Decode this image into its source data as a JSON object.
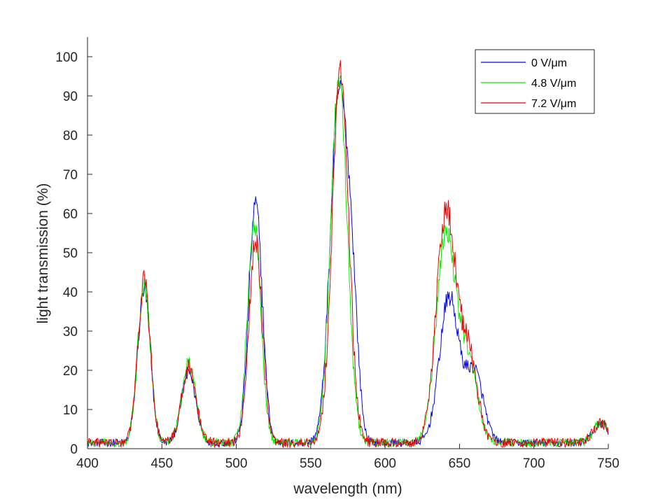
{
  "chart_data": {
    "type": "line",
    "title": "",
    "xlabel": "wavelength (nm)",
    "ylabel": "light transmission (%)",
    "xlim": [
      400,
      750
    ],
    "ylim": [
      0,
      105
    ],
    "xticks": [
      400,
      450,
      500,
      550,
      600,
      650,
      700,
      750
    ],
    "yticks": [
      0,
      10,
      20,
      30,
      40,
      50,
      60,
      70,
      80,
      90,
      100
    ],
    "grid": false,
    "legend_position": "top-right",
    "series": [
      {
        "name": "0 V/μm",
        "color": "#0000ee",
        "peaks": [
          {
            "center": 438,
            "amp": 39,
            "sigma": 4.2
          },
          {
            "center": 468,
            "amp": 18,
            "sigma": 4.8
          },
          {
            "center": 513,
            "amp": 61,
            "sigma": 4.5
          },
          {
            "center": 569,
            "amp": 88,
            "sigma": 5.8
          },
          {
            "center": 578,
            "amp": 28,
            "sigma": 4.0
          },
          {
            "center": 643,
            "amp": 37,
            "sigma": 6.5
          },
          {
            "center": 660,
            "amp": 18,
            "sigma": 6.0
          },
          {
            "center": 745,
            "amp": 5,
            "sigma": 5.0
          }
        ],
        "baseline": 1.5,
        "noise": 1.8
      },
      {
        "name": "4.8 V/μm",
        "color": "#00ee00",
        "peaks": [
          {
            "center": 438,
            "amp": 41,
            "sigma": 4.2
          },
          {
            "center": 468,
            "amp": 20,
            "sigma": 4.8
          },
          {
            "center": 512,
            "amp": 56,
            "sigma": 4.5
          },
          {
            "center": 569,
            "amp": 93,
            "sigma": 5.5
          },
          {
            "center": 641,
            "amp": 53,
            "sigma": 6.5
          },
          {
            "center": 656,
            "amp": 20,
            "sigma": 6.0
          },
          {
            "center": 745,
            "amp": 5,
            "sigma": 5.0
          }
        ],
        "baseline": 1.5,
        "noise": 2.0
      },
      {
        "name": "7.2 V/μm",
        "color": "#ee0000",
        "peaks": [
          {
            "center": 438,
            "amp": 41,
            "sigma": 4.2
          },
          {
            "center": 468,
            "amp": 19,
            "sigma": 4.8
          },
          {
            "center": 513,
            "amp": 51,
            "sigma": 4.5
          },
          {
            "center": 570,
            "amp": 95,
            "sigma": 5.5
          },
          {
            "center": 641,
            "amp": 59,
            "sigma": 6.5
          },
          {
            "center": 656,
            "amp": 22,
            "sigma": 6.0
          },
          {
            "center": 745,
            "amp": 5,
            "sigma": 5.0
          }
        ],
        "baseline": 1.5,
        "noise": 2.3
      }
    ]
  }
}
